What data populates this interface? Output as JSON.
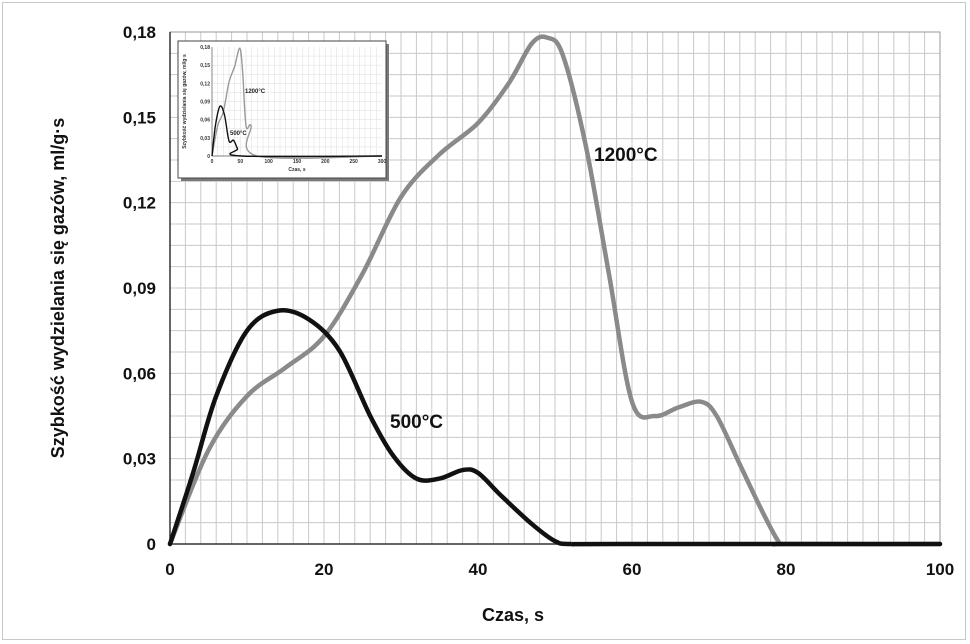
{
  "chart_data": {
    "type": "line",
    "title": "",
    "xlabel": "Czas, s",
    "ylabel": "Szybkość wydzielania się gazów, ml/g·s",
    "xlim": [
      0,
      100
    ],
    "ylim": [
      0,
      0.18
    ],
    "x_ticks": [
      "0",
      "20",
      "40",
      "60",
      "80",
      "100"
    ],
    "y_ticks": [
      "0",
      "0,03",
      "0,06",
      "0,09",
      "0,12",
      "0,15",
      "0,18"
    ],
    "grid": true,
    "series": [
      {
        "name": "500°C",
        "color": "#111111",
        "points": [
          [
            0,
            0
          ],
          [
            3,
            0.025
          ],
          [
            6,
            0.052
          ],
          [
            10,
            0.075
          ],
          [
            14,
            0.082
          ],
          [
            18,
            0.079
          ],
          [
            22,
            0.068
          ],
          [
            26,
            0.045
          ],
          [
            29,
            0.031
          ],
          [
            32,
            0.023
          ],
          [
            35,
            0.023
          ],
          [
            38,
            0.026
          ],
          [
            40,
            0.025
          ],
          [
            43,
            0.017
          ],
          [
            47,
            0.007
          ],
          [
            50,
            0.001
          ],
          [
            52,
            0
          ],
          [
            58,
            0
          ],
          [
            100,
            0
          ]
        ]
      },
      {
        "name": "1200°C",
        "color": "#8a8a8a",
        "points": [
          [
            0,
            0
          ],
          [
            5,
            0.033
          ],
          [
            10,
            0.052
          ],
          [
            15,
            0.062
          ],
          [
            20,
            0.073
          ],
          [
            25,
            0.095
          ],
          [
            30,
            0.122
          ],
          [
            35,
            0.137
          ],
          [
            40,
            0.148
          ],
          [
            44,
            0.162
          ],
          [
            47,
            0.176
          ],
          [
            49,
            0.178
          ],
          [
            51,
            0.172
          ],
          [
            54,
            0.14
          ],
          [
            57,
            0.095
          ],
          [
            60,
            0.05
          ],
          [
            63,
            0.045
          ],
          [
            66,
            0.048
          ],
          [
            69,
            0.05
          ],
          [
            71,
            0.045
          ],
          [
            74,
            0.028
          ],
          [
            77,
            0.011
          ],
          [
            79,
            0.001
          ],
          [
            80,
            0
          ],
          [
            100,
            0
          ]
        ]
      }
    ],
    "annotations": [
      "500°C",
      "1200°C"
    ],
    "inset": {
      "xlabel": "Czas, s",
      "ylabel": "Szybkość wydzielania się gazów, ml/g·s",
      "xlim": [
        0,
        300
      ],
      "ylim": [
        0,
        0.18
      ],
      "x_ticks": [
        "0",
        "50",
        "100",
        "150",
        "200",
        "250",
        "300"
      ],
      "y_ticks": [
        "0",
        "0,03",
        "0,06",
        "0,09",
        "0,12",
        "0,15",
        "0,18"
      ],
      "series": [
        {
          "name": "500°C",
          "color": "#111111",
          "points": [
            [
              0,
              0
            ],
            [
              6,
              0.05
            ],
            [
              14,
              0.082
            ],
            [
              22,
              0.068
            ],
            [
              30,
              0.025
            ],
            [
              38,
              0.026
            ],
            [
              45,
              0.012
            ],
            [
              52,
              0
            ],
            [
              300,
              0
            ]
          ]
        },
        {
          "name": "1200°C",
          "color": "#9a9a9a",
          "points": [
            [
              0,
              0
            ],
            [
              10,
              0.05
            ],
            [
              20,
              0.073
            ],
            [
              30,
              0.122
            ],
            [
              40,
              0.148
            ],
            [
              49,
              0.178
            ],
            [
              54,
              0.14
            ],
            [
              60,
              0.05
            ],
            [
              69,
              0.05
            ],
            [
              80,
              0
            ],
            [
              300,
              0
            ]
          ]
        }
      ]
    }
  }
}
